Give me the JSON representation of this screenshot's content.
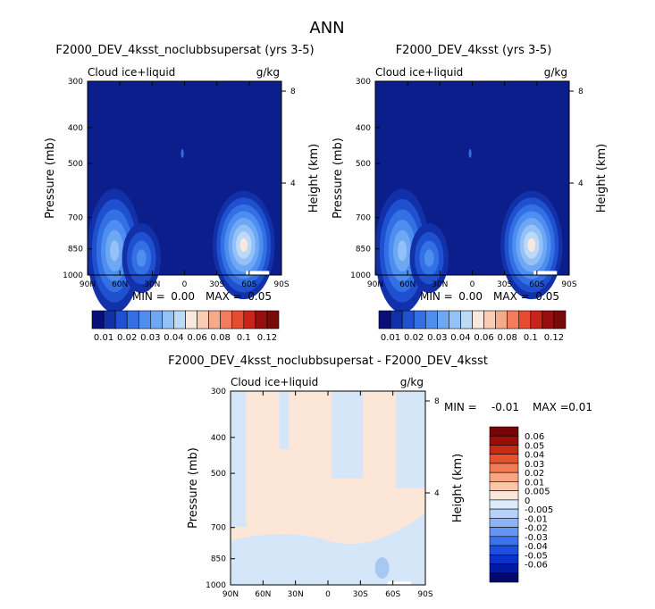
{
  "page_title": "ANN",
  "colors": {
    "fill_dark": "#0c1e8c",
    "cb1": [
      "#0a0f78",
      "#1230a8",
      "#1e50d0",
      "#3270e4",
      "#4e8ef0",
      "#6ea8f4",
      "#94c2f8",
      "#bcdaf8",
      "#fae8dc",
      "#f8cdb4",
      "#f6aa8a",
      "#f27c5c",
      "#e64c32",
      "#c8241a",
      "#961010",
      "#780a0a"
    ],
    "cb3": [
      "#00096e",
      "#001aa0",
      "#0a32c8",
      "#1e50e0",
      "#3c72f0",
      "#6494f4",
      "#8eb4f8",
      "#b4d2fa",
      "#dceafa",
      "#fae6d8",
      "#f8c8a8",
      "#f6a680",
      "#f27c58",
      "#e6522e",
      "#c82a14",
      "#961008",
      "#780404"
    ],
    "diff_pos": "#fbe6d8",
    "diff_neg": "#d4e6f8"
  },
  "chart_data": [
    {
      "type": "contour",
      "title": "F2000_DEV_4ksst_noclubbsupersat (yrs 3-5)",
      "left_label": "Cloud ice+liquid",
      "right_label": "g/kg",
      "ylabel": "Pressure (mb)",
      "y2label": "Height (km)",
      "x_ticks": [
        "90N",
        "60N",
        "30N",
        "0",
        "30S",
        "60S",
        "90S"
      ],
      "y_ticks": [
        "300",
        "400",
        "500",
        "700",
        "850",
        "1000"
      ],
      "y_tick_values": [
        300,
        400,
        500,
        700,
        850,
        1000
      ],
      "y2_ticks": [
        "8",
        "4"
      ],
      "y2_tick_values": [
        8,
        4
      ],
      "ylim": [
        300,
        1000
      ],
      "xlim": [
        90,
        -90
      ],
      "min_label": "MIN =",
      "min_value": "0.00",
      "max_label": "MAX =",
      "max_value": "0.05",
      "colorbar_labels": [
        "0.01",
        "0.02",
        "0.03",
        "0.04",
        "0.06",
        "0.08",
        "0.1",
        "0.12"
      ],
      "colorbar_levels": [
        0.005,
        0.01,
        0.015,
        0.02,
        0.025,
        0.03,
        0.035,
        0.04,
        0.05,
        0.06,
        0.07,
        0.08,
        0.09,
        0.1,
        0.11,
        0.12
      ]
    },
    {
      "type": "contour",
      "title": "F2000_DEV_4ksst (yrs 3-5)",
      "left_label": "Cloud ice+liquid",
      "right_label": "g/kg",
      "ylabel": "Pressure (mb)",
      "y2label": "Height (km)",
      "x_ticks": [
        "90N",
        "60N",
        "30N",
        "0",
        "30S",
        "60S",
        "90S"
      ],
      "y_ticks": [
        "300",
        "400",
        "500",
        "700",
        "850",
        "1000"
      ],
      "y_tick_values": [
        300,
        400,
        500,
        700,
        850,
        1000
      ],
      "y2_ticks": [
        "8",
        "4"
      ],
      "y2_tick_values": [
        8,
        4
      ],
      "ylim": [
        300,
        1000
      ],
      "xlim": [
        90,
        -90
      ],
      "min_label": "MIN =",
      "min_value": "0.00",
      "max_label": "MAX =",
      "max_value": "0.05",
      "colorbar_labels": [
        "0.01",
        "0.02",
        "0.03",
        "0.04",
        "0.06",
        "0.08",
        "0.1",
        "0.12"
      ],
      "colorbar_levels": [
        0.005,
        0.01,
        0.015,
        0.02,
        0.025,
        0.03,
        0.035,
        0.04,
        0.05,
        0.06,
        0.07,
        0.08,
        0.09,
        0.1,
        0.11,
        0.12
      ]
    },
    {
      "type": "contour",
      "title": "F2000_DEV_4ksst_noclubbsupersat - F2000_DEV_4ksst",
      "left_label": "Cloud ice+liquid",
      "right_label": "g/kg",
      "ylabel": "Pressure (mb)",
      "y2label": "Height (km)",
      "x_ticks": [
        "90N",
        "60N",
        "30N",
        "0",
        "30S",
        "60S",
        "90S"
      ],
      "y_ticks": [
        "300",
        "400",
        "500",
        "700",
        "850",
        "1000"
      ],
      "y_tick_values": [
        300,
        400,
        500,
        700,
        850,
        1000
      ],
      "y2_ticks": [
        "8",
        "4"
      ],
      "y2_tick_values": [
        8,
        4
      ],
      "ylim": [
        300,
        1000
      ],
      "xlim": [
        90,
        -90
      ],
      "min_label": "MIN =",
      "min_value": "-0.01",
      "max_label": "MAX =",
      "max_value": "0.01",
      "colorbar_labels": [
        "0.06",
        "0.05",
        "0.04",
        "0.03",
        "0.02",
        "0.01",
        "0.005",
        "0",
        "-0.005",
        "-0.01",
        "-0.02",
        "-0.03",
        "-0.04",
        "-0.05",
        "-0.06"
      ]
    }
  ]
}
